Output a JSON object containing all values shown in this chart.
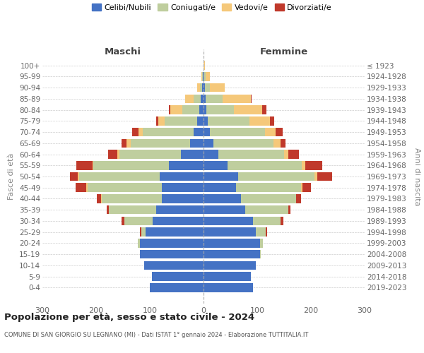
{
  "age_groups": [
    "100+",
    "95-99",
    "90-94",
    "85-89",
    "80-84",
    "75-79",
    "70-74",
    "65-69",
    "60-64",
    "55-59",
    "50-54",
    "45-49",
    "40-44",
    "35-39",
    "30-34",
    "25-29",
    "20-24",
    "15-19",
    "10-14",
    "5-9",
    "0-4"
  ],
  "birth_years": [
    "≤ 1923",
    "1924-1928",
    "1929-1933",
    "1934-1938",
    "1939-1943",
    "1944-1948",
    "1949-1953",
    "1954-1958",
    "1959-1963",
    "1964-1968",
    "1969-1973",
    "1974-1978",
    "1979-1983",
    "1984-1988",
    "1989-1993",
    "1994-1998",
    "1999-2003",
    "2004-2008",
    "2009-2013",
    "2014-2018",
    "2019-2023"
  ],
  "colors": {
    "celibe": "#4472C4",
    "coniugato": "#BFCE9E",
    "vedovo": "#F5C87A",
    "divorziato": "#C0392B"
  },
  "maschi": {
    "celibe": [
      0,
      1,
      3,
      5,
      8,
      12,
      18,
      25,
      42,
      65,
      82,
      78,
      78,
      88,
      95,
      108,
      118,
      118,
      110,
      96,
      100
    ],
    "coniugato": [
      0,
      1,
      4,
      14,
      32,
      60,
      95,
      110,
      115,
      140,
      150,
      138,
      112,
      88,
      52,
      8,
      4,
      0,
      0,
      0,
      0
    ],
    "vedovo": [
      0,
      2,
      5,
      15,
      22,
      12,
      8,
      8,
      3,
      2,
      2,
      2,
      1,
      0,
      0,
      0,
      0,
      0,
      0,
      0,
      0
    ],
    "divorziato": [
      0,
      0,
      0,
      0,
      2,
      4,
      12,
      10,
      18,
      30,
      15,
      20,
      8,
      4,
      5,
      2,
      0,
      0,
      0,
      0,
      0
    ]
  },
  "femmine": {
    "nubile": [
      0,
      0,
      2,
      4,
      5,
      8,
      12,
      18,
      28,
      45,
      65,
      60,
      70,
      78,
      92,
      98,
      105,
      105,
      98,
      88,
      92
    ],
    "coniugata": [
      0,
      4,
      10,
      32,
      52,
      78,
      102,
      112,
      122,
      138,
      142,
      122,
      102,
      80,
      52,
      18,
      6,
      2,
      0,
      0,
      0
    ],
    "vedova": [
      2,
      8,
      28,
      52,
      52,
      38,
      20,
      14,
      8,
      6,
      5,
      2,
      1,
      0,
      0,
      0,
      0,
      0,
      0,
      0,
      0
    ],
    "divorziata": [
      0,
      0,
      0,
      2,
      8,
      8,
      14,
      8,
      20,
      32,
      28,
      16,
      8,
      4,
      5,
      2,
      0,
      0,
      0,
      0,
      0
    ]
  },
  "title": "Popolazione per età, sesso e stato civile - 2024",
  "subtitle": "COMUNE DI SAN GIORGIO SU LEGNANO (MI) - Dati ISTAT 1° gennaio 2024 - Elaborazione TUTTITALIA.IT",
  "xlabel_maschi": "Maschi",
  "xlabel_femmine": "Femmine",
  "ylabel_left": "Fasce di età",
  "ylabel_right": "Anni di nascita",
  "xlim": 300,
  "bg_color": "#FFFFFF",
  "grid_color": "#CCCCCC",
  "legend_labels": [
    "Celibi/Nubili",
    "Coniugati/e",
    "Vedovi/e",
    "Divorziati/e"
  ]
}
